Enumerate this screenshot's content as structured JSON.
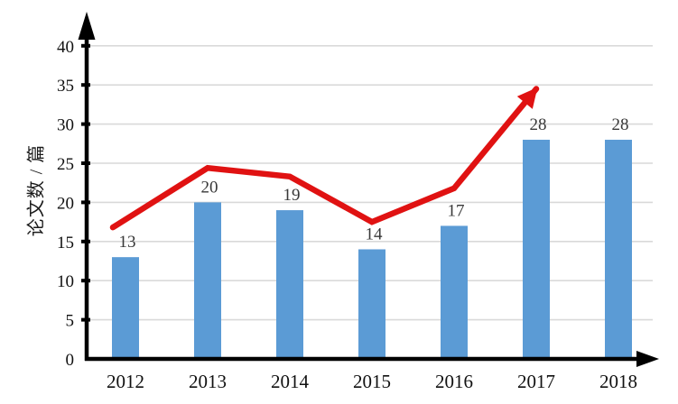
{
  "chart_data": {
    "type": "bar",
    "title": "",
    "categories": [
      "2012",
      "2013",
      "2014",
      "2015",
      "2016",
      "2017",
      "2018"
    ],
    "series": [
      {
        "name": "论文数",
        "type": "bar",
        "color": "#5B9BD5",
        "values": [
          13,
          20,
          19,
          14,
          17,
          28,
          28
        ]
      }
    ],
    "trend_line": {
      "name": "trend-arrow",
      "type": "line",
      "color": "#E01212",
      "stroke_width": 6.5,
      "arrow_end": true,
      "points": [
        {
          "category": "2012",
          "value": 16.8,
          "dx": -14
        },
        {
          "category": "2013",
          "value": 24.4
        },
        {
          "category": "2014",
          "value": 23.3
        },
        {
          "category": "2015",
          "value": 17.5
        },
        {
          "category": "2016",
          "value": 21.8
        },
        {
          "category": "2017",
          "value": 34.5
        }
      ]
    },
    "xlabel": "",
    "ylabel": "论文数 / 篇",
    "ylim": [
      0,
      40
    ],
    "yticks": [
      0,
      5,
      10,
      15,
      20,
      25,
      30,
      35,
      40
    ],
    "grid": true,
    "legend": "none",
    "colors": {
      "bar": "#5B9BD5",
      "line": "#E01212",
      "gridline": "#D9D9D9",
      "axis": "#000000",
      "data_label": "#383838",
      "tick_label": "#111111",
      "background": "#FFFFFF"
    }
  }
}
